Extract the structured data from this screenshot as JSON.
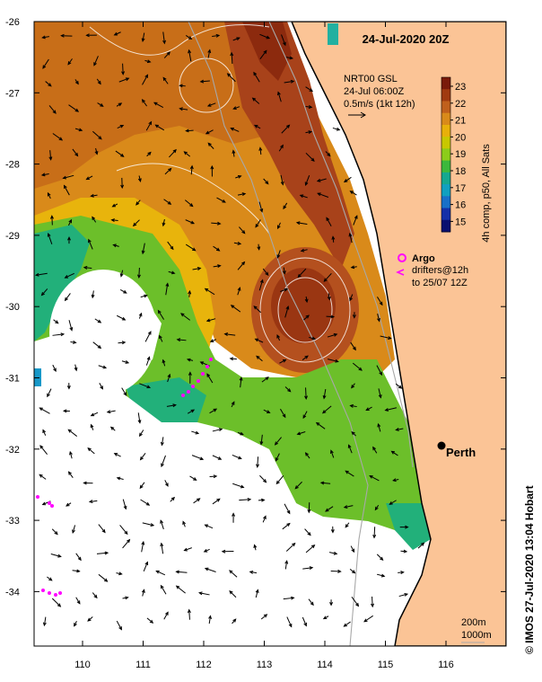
{
  "title": "24-Jul-2020 20Z",
  "info": {
    "line1": "NRT00 GSL",
    "line2": "24-Jul 06:00Z",
    "line3": "0.5m/s (1kt 12h)"
  },
  "colorbar": {
    "label": "4h comp, p50, All Sats",
    "ticks": [
      "23",
      "22",
      "21",
      "20",
      "19",
      "18",
      "17",
      "16",
      "15"
    ],
    "colors": [
      "#7a1a0a",
      "#a03a10",
      "#c0601c",
      "#d98a1a",
      "#e8b00a",
      "#c8c800",
      "#8ccc1a",
      "#3cb83c",
      "#14a890",
      "#10a0c0",
      "#1870c8",
      "#1430a8",
      "#0a1070"
    ]
  },
  "legend": {
    "argo_label": "Argo",
    "drifters_label": "drifters@12h",
    "drifters_to": "to 25/07 12Z"
  },
  "city": {
    "name": "Perth"
  },
  "y_ticks": [
    "-26",
    "-27",
    "-28",
    "-29",
    "-30",
    "-31",
    "-32",
    "-33",
    "-34"
  ],
  "x_ticks": [
    "110",
    "111",
    "112",
    "113",
    "114",
    "115",
    "116"
  ],
  "depth_legend": {
    "contour1": "200m",
    "contour2": "1000m"
  },
  "credit": "© IMOS 27-Jul-2020 13:04 Hobart",
  "colors": {
    "land": "#fbc496",
    "warm": "#b4501e",
    "hot": "#8c2a0e",
    "mid": "#d98a1a",
    "yellow": "#e8b40c",
    "green": "#6cbf2a",
    "teal": "#22b07a",
    "argo": "#ff00ff"
  }
}
